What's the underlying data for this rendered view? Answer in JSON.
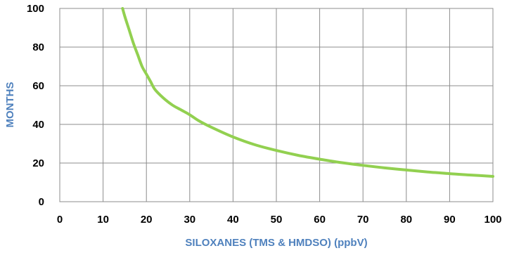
{
  "chart_data": {
    "type": "line",
    "title": "",
    "xlabel": "SILOXANES (TMS & HMDSO) (ppbV)",
    "ylabel": "MONTHS",
    "xlim": [
      0,
      100
    ],
    "ylim": [
      0,
      100
    ],
    "x_ticks": [
      0,
      10,
      20,
      30,
      40,
      50,
      60,
      70,
      80,
      90,
      100
    ],
    "y_ticks": [
      0,
      20,
      40,
      60,
      80,
      100
    ],
    "grid": true,
    "legend": "none",
    "series": [
      {
        "color": "#92d050",
        "x": [
          14.5,
          15,
          16,
          17,
          18,
          19,
          20,
          21,
          22,
          24,
          26,
          28,
          30,
          32,
          35,
          40,
          45,
          50,
          55,
          60,
          65,
          70,
          75,
          80,
          85,
          90,
          95,
          100
        ],
        "y": [
          100,
          96,
          89,
          82,
          76,
          70,
          66,
          62,
          58,
          53.5,
          50,
          47.5,
          45,
          42,
          38.5,
          33.5,
          29.5,
          26.5,
          24,
          22,
          20.2,
          18.8,
          17.5,
          16.4,
          15.4,
          14.5,
          13.8,
          13.1
        ]
      }
    ]
  },
  "colors": {
    "axis_title": "#4f81bd",
    "tick_label": "#000000",
    "grid": "#8c8c8c",
    "curve": "#92d050"
  }
}
